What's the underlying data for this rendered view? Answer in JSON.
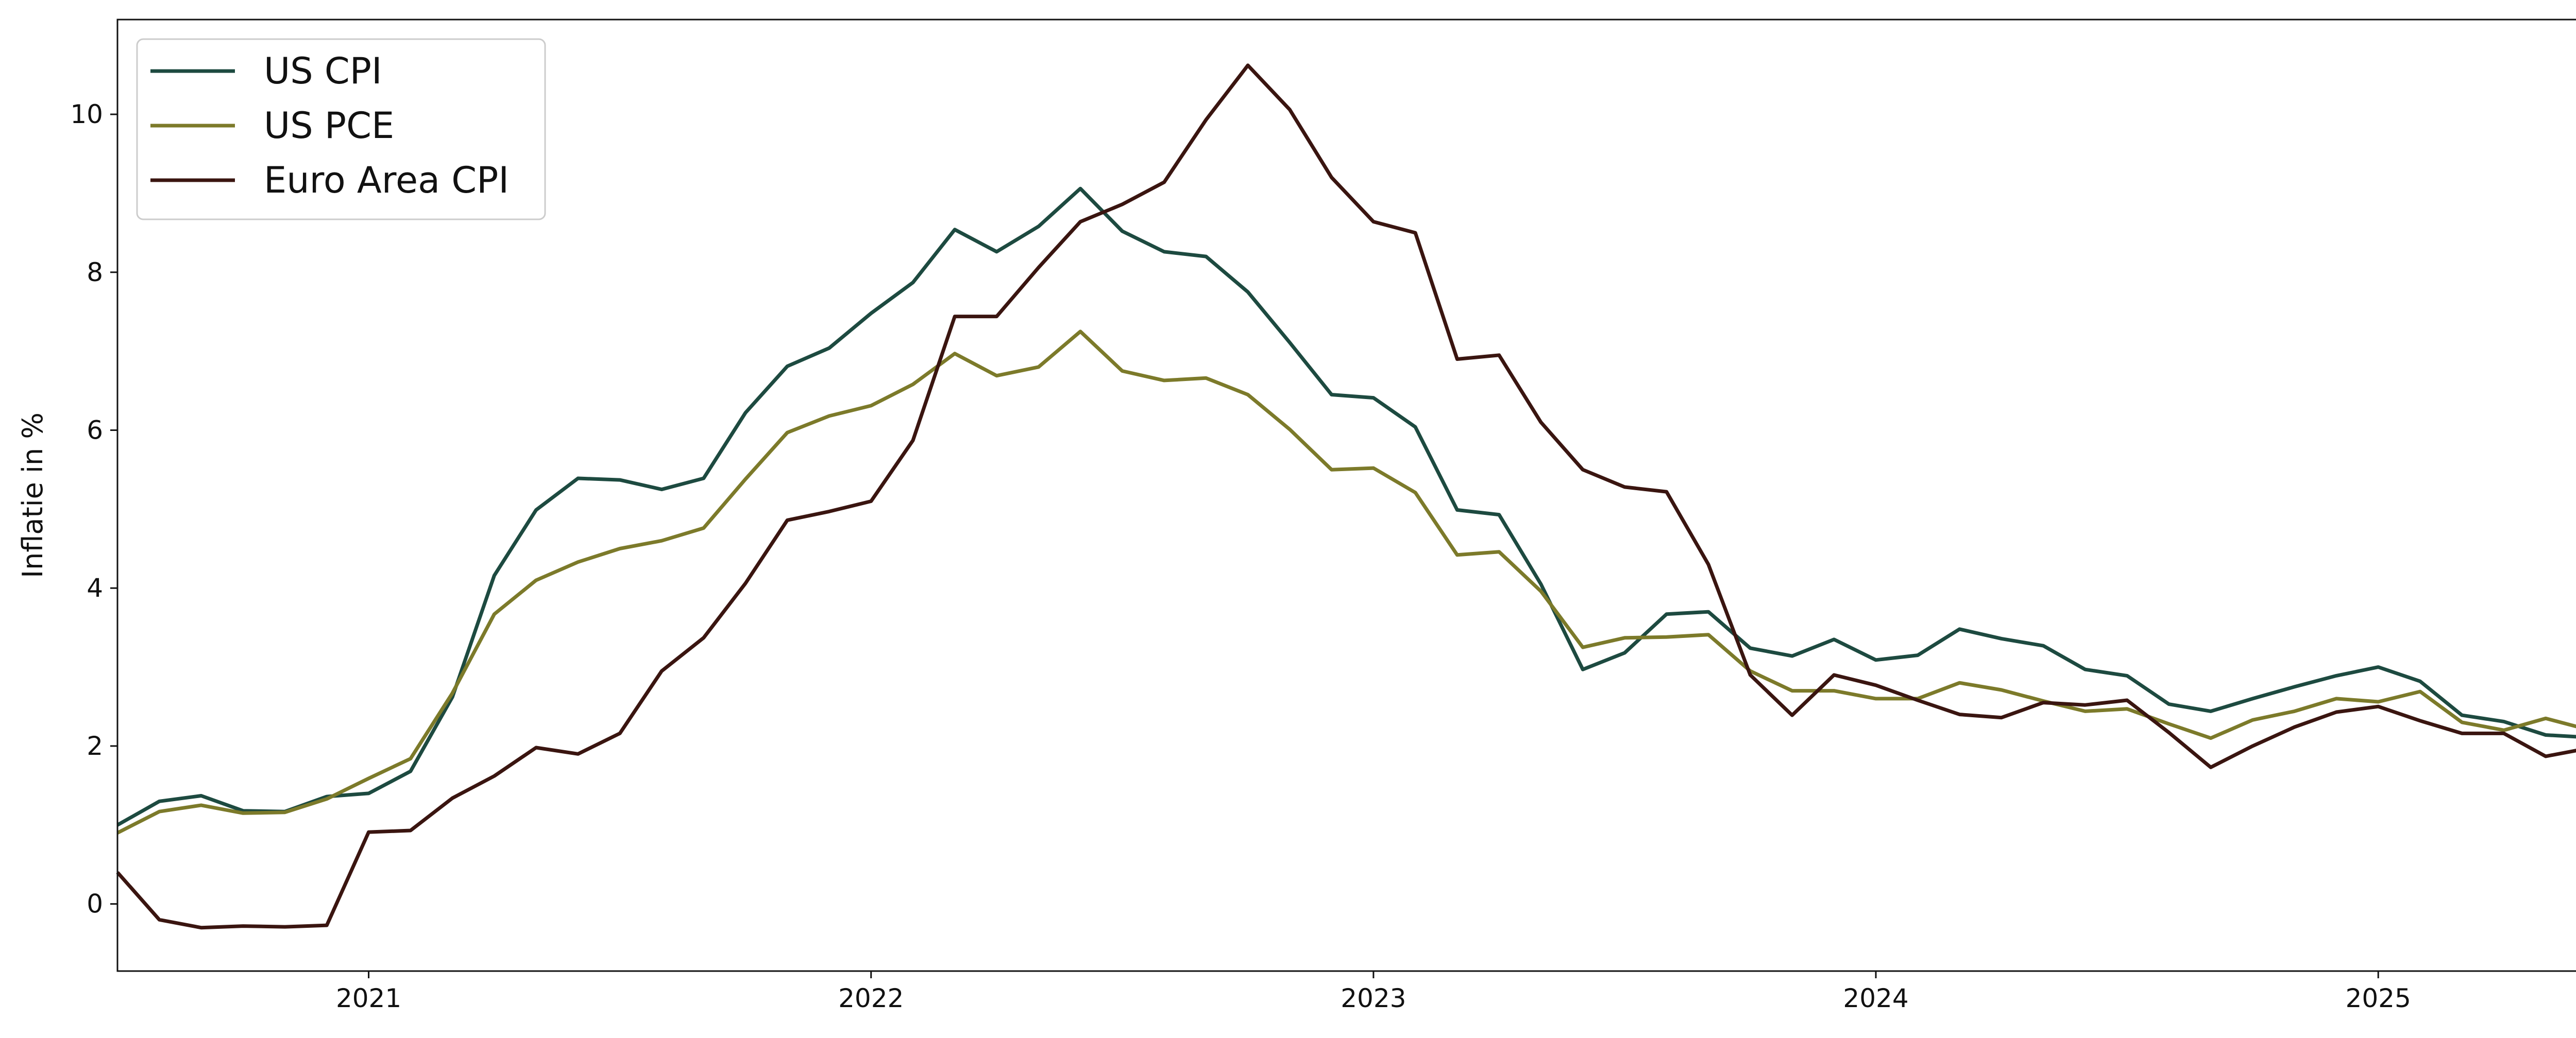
{
  "chart_data": {
    "type": "line",
    "title": "",
    "xlabel": "",
    "ylabel": "Inflatie in %",
    "x_start": "2020-07",
    "x_freq": "monthly",
    "xlim": [
      "2020-07",
      "2025-08"
    ],
    "ylim": [
      -0.85,
      11.2
    ],
    "x_ticks": [
      "2021",
      "2022",
      "2023",
      "2024",
      "2025"
    ],
    "y_ticks": [
      0,
      2,
      4,
      6,
      8,
      10
    ],
    "grid": false,
    "legend_position": "top-left",
    "series": [
      {
        "name": "US CPI",
        "color": "#1d4a40",
        "values": [
          1.0,
          1.3,
          1.37,
          1.18,
          1.17,
          1.36,
          1.4,
          1.68,
          2.62,
          4.16,
          4.99,
          5.39,
          5.37,
          5.25,
          5.39,
          6.22,
          6.81,
          7.04,
          7.48,
          7.87,
          8.54,
          8.26,
          8.58,
          9.06,
          8.52,
          8.26,
          8.2,
          7.75,
          7.11,
          6.45,
          6.41,
          6.04,
          4.99,
          4.93,
          4.05,
          2.97,
          3.18,
          3.67,
          3.7,
          3.24,
          3.14,
          3.35,
          3.09,
          3.15,
          3.48,
          3.36,
          3.27,
          2.97,
          2.89,
          2.53,
          2.44,
          2.6,
          2.75,
          2.89,
          3.0,
          2.82,
          2.39,
          2.31,
          2.14,
          2.11
        ]
      },
      {
        "name": "US PCE",
        "color": "#7c7a2a",
        "values": [
          0.9,
          1.17,
          1.25,
          1.15,
          1.16,
          1.33,
          1.59,
          1.84,
          2.67,
          3.67,
          4.1,
          4.33,
          4.5,
          4.6,
          4.76,
          5.38,
          5.97,
          6.18,
          6.31,
          6.58,
          6.97,
          6.69,
          6.8,
          7.25,
          6.75,
          6.63,
          6.66,
          6.45,
          6.01,
          5.5,
          5.52,
          5.21,
          4.42,
          4.46,
          3.96,
          3.25,
          3.37,
          3.38,
          3.41,
          2.95,
          2.7,
          2.7,
          2.6,
          2.6,
          2.8,
          2.71,
          2.57,
          2.44,
          2.47,
          2.28,
          2.1,
          2.33,
          2.44,
          2.6,
          2.56,
          2.69,
          2.3,
          2.2,
          2.35,
          2.21
        ]
      },
      {
        "name": "Euro Area CPI",
        "color": "#3a1510",
        "values": [
          0.4,
          -0.2,
          -0.3,
          -0.28,
          -0.29,
          -0.27,
          0.91,
          0.93,
          1.34,
          1.62,
          1.98,
          1.9,
          2.16,
          2.95,
          3.37,
          4.06,
          4.86,
          4.97,
          5.1,
          5.87,
          7.44,
          7.44,
          8.06,
          8.64,
          8.86,
          9.14,
          9.93,
          10.62,
          10.06,
          9.2,
          8.64,
          8.5,
          6.9,
          6.95,
          6.1,
          5.5,
          5.28,
          5.22,
          4.3,
          2.9,
          2.39,
          2.9,
          2.77,
          2.58,
          2.4,
          2.36,
          2.55,
          2.52,
          2.58,
          2.17,
          1.73,
          2.0,
          2.24,
          2.43,
          2.5,
          2.32,
          2.16,
          2.16,
          1.87,
          1.97
        ]
      }
    ]
  }
}
